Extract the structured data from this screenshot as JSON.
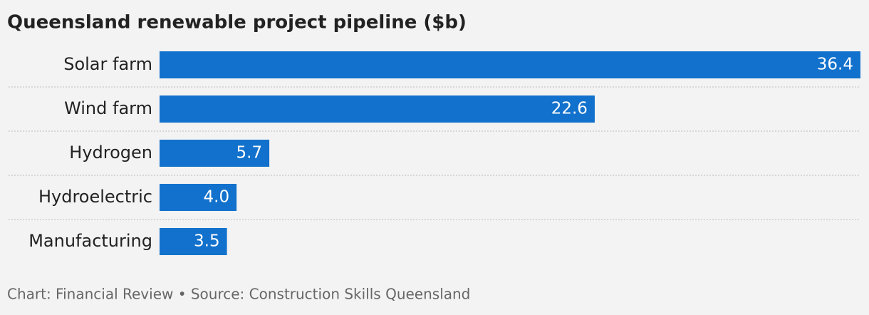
{
  "chart_data": {
    "type": "hbar",
    "title": "Queensland renewable project pipeline ($b)",
    "categories": [
      "Solar farm",
      "Wind farm",
      "Hydrogen",
      "Hydroelectric",
      "Manufacturing"
    ],
    "values": [
      36.4,
      22.6,
      5.7,
      4.0,
      3.5
    ],
    "value_labels": [
      "36.4",
      "22.6",
      "5.7",
      "4.0",
      "3.5"
    ],
    "color": "#1271cc",
    "source": "Chart: Financial Review • Source: Construction Skills Queensland"
  }
}
